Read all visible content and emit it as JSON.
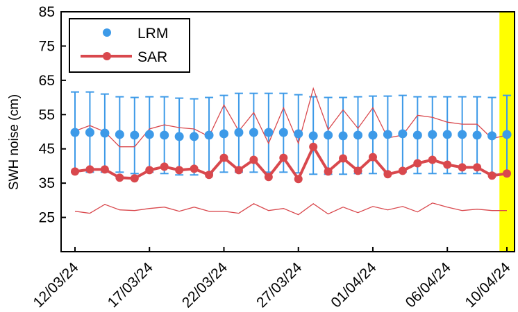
{
  "chart_data": {
    "type": "line",
    "ylabel": "SWH noise (cm)",
    "xlabel": "",
    "title": "",
    "ylim": [
      15,
      85
    ],
    "yticks": [
      25,
      35,
      45,
      55,
      65,
      75,
      85
    ],
    "xticks": [
      "12/03/24",
      "17/03/24",
      "22/03/24",
      "27/03/24",
      "01/04/24",
      "06/04/24",
      "10/04/24"
    ],
    "x": [
      "12/03/24",
      "13/03/24",
      "14/03/24",
      "15/03/24",
      "16/03/24",
      "17/03/24",
      "18/03/24",
      "19/03/24",
      "20/03/24",
      "21/03/24",
      "22/03/24",
      "23/03/24",
      "24/03/24",
      "25/03/24",
      "26/03/24",
      "27/03/24",
      "28/03/24",
      "29/03/24",
      "30/03/24",
      "31/03/24",
      "01/04/24",
      "02/04/24",
      "03/04/24",
      "04/04/24",
      "05/04/24",
      "06/04/24",
      "07/04/24",
      "08/04/24",
      "09/04/24",
      "10/04/24"
    ],
    "legend": {
      "placement": "top-left",
      "entries": [
        "LRM",
        "SAR"
      ]
    },
    "highlight": {
      "from": "09/04/24 + 12h",
      "to": "10/04/24",
      "color": "#ffff00"
    },
    "series": [
      {
        "name": "LRM",
        "style": "markers-with-errorbars",
        "color": "#3d9ae8",
        "values": [
          49.8,
          49.8,
          49.6,
          49.2,
          49.0,
          49.2,
          49.0,
          48.6,
          48.6,
          49.0,
          49.4,
          49.8,
          49.8,
          49.8,
          49.8,
          49.4,
          48.8,
          49.0,
          48.8,
          49.0,
          49.0,
          49.2,
          49.4,
          49.0,
          49.2,
          49.2,
          49.2,
          49.0,
          48.8,
          49.2
        ],
        "upper": [
          61.6,
          61.6,
          61.0,
          60.2,
          60.0,
          60.2,
          60.2,
          59.8,
          59.6,
          60.0,
          60.6,
          61.2,
          61.2,
          61.2,
          61.2,
          60.8,
          60.2,
          60.0,
          60.0,
          60.2,
          60.4,
          60.4,
          60.6,
          60.2,
          60.2,
          60.2,
          60.2,
          60.2,
          60.0,
          60.6
        ],
        "lower": [
          38.2,
          38.2,
          38.2,
          38.2,
          37.8,
          38.2,
          37.8,
          37.4,
          37.4,
          38.0,
          38.2,
          38.2,
          38.2,
          38.2,
          38.2,
          38.0,
          37.6,
          37.6,
          37.6,
          37.8,
          37.8,
          38.0,
          38.2,
          37.8,
          37.8,
          37.8,
          37.8,
          37.8,
          37.8,
          37.8
        ]
      },
      {
        "name": "SAR",
        "style": "thick-line-markers",
        "color": "#d9484d",
        "values": [
          38.4,
          39.0,
          39.0,
          36.6,
          36.4,
          38.8,
          39.8,
          38.8,
          39.2,
          37.4,
          42.4,
          38.8,
          41.8,
          36.8,
          42.4,
          36.2,
          45.6,
          38.4,
          42.2,
          38.6,
          42.6,
          37.6,
          38.6,
          40.8,
          41.8,
          40.4,
          39.6,
          39.6,
          37.2,
          37.8
        ]
      },
      {
        "name": "SAR upper",
        "style": "thin-line",
        "color": "#d9484d",
        "values": [
          50.2,
          51.8,
          50.0,
          45.6,
          45.6,
          50.8,
          52.0,
          51.2,
          50.8,
          48.6,
          57.8,
          50.2,
          55.6,
          46.6,
          57.0,
          46.6,
          62.6,
          50.6,
          56.4,
          51.0,
          57.0,
          48.2,
          49.0,
          54.8,
          54.2,
          52.8,
          52.2,
          52.2,
          48.0,
          49.0
        ]
      },
      {
        "name": "SAR lower",
        "style": "thin-line",
        "color": "#d9484d",
        "values": [
          26.8,
          26.2,
          28.8,
          27.2,
          27.0,
          27.6,
          28.0,
          26.8,
          28.0,
          26.8,
          26.8,
          26.2,
          29.0,
          27.0,
          27.6,
          25.8,
          29.0,
          26.0,
          28.0,
          26.4,
          28.2,
          27.2,
          28.2,
          26.6,
          29.2,
          28.0,
          27.0,
          27.4,
          27.0,
          27.0
        ]
      }
    ]
  }
}
